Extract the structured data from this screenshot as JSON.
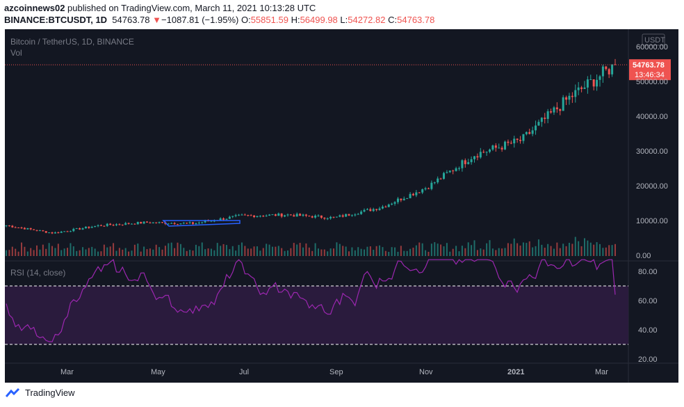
{
  "header": {
    "author": "azcoinnews02",
    "published": " published on TradingView.com, March 11, 2021 10:13:28 UTC",
    "symbol": "BINANCE:BTCUSDT, 1D",
    "last": "54763.78",
    "arrow": "▼",
    "change": "−1087.81 (−1.95%)",
    "o_label": "O:",
    "o": "55851.59",
    "h_label": "H:",
    "h": "56499.98",
    "l_label": "L:",
    "l": "54272.82",
    "c_label": "C:",
    "c": "54763.78"
  },
  "chart": {
    "title": "Bitcoin / TetherUS, 1D, BINANCE",
    "vol_label": "Vol",
    "currency": "USDT",
    "price_badge": "54763.78",
    "countdown": "13:46:34",
    "rsi_label": "RSI (14, close)",
    "colors": {
      "up": "#26a69a",
      "down": "#ef5350",
      "rsi": "#9c27b0",
      "bg": "#131722"
    }
  },
  "chart_data": [
    {
      "type": "candlestick",
      "title": "Bitcoin / TetherUS, 1D, BINANCE",
      "y_ticks": [
        "60000.00",
        "50000.00",
        "40000.00",
        "30000.00",
        "20000.00",
        "10000.00",
        "0.00"
      ],
      "x_ticks": [
        "Mar",
        "May",
        "Jul",
        "Sep",
        "Nov",
        "2021",
        "Mar"
      ],
      "ylim": [
        0,
        60000
      ],
      "last_price": 54763.78,
      "monthly_close_approx": [
        {
          "x": "2020-02",
          "y": 8600
        },
        {
          "x": "2020-03",
          "y": 6400
        },
        {
          "x": "2020-04",
          "y": 8600
        },
        {
          "x": "2020-05",
          "y": 9450
        },
        {
          "x": "2020-06",
          "y": 9150
        },
        {
          "x": "2020-07",
          "y": 11350
        },
        {
          "x": "2020-08",
          "y": 11650
        },
        {
          "x": "2020-09",
          "y": 10800
        },
        {
          "x": "2020-10",
          "y": 13800
        },
        {
          "x": "2020-11",
          "y": 19700
        },
        {
          "x": "2020-12",
          "y": 29000
        },
        {
          "x": "2021-01",
          "y": 33100
        },
        {
          "x": "2021-02",
          "y": 45100
        },
        {
          "x": "2021-03-11",
          "y": 54763.78
        }
      ]
    },
    {
      "type": "line",
      "title": "RSI (14, close)",
      "y_ticks": [
        "80.00",
        "60.00",
        "40.00",
        "20.00"
      ],
      "ylim": [
        10,
        90
      ],
      "bands": [
        30,
        70
      ],
      "last_value": 64
    }
  ],
  "footer": {
    "brand": "TradingView"
  }
}
